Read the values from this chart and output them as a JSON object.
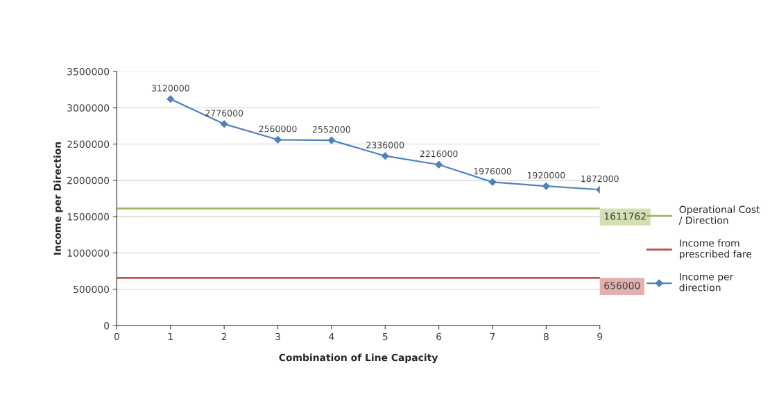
{
  "chart_data": {
    "type": "line",
    "xlabel": "Combination of Line Capacity",
    "ylabel": "Income per Direction",
    "xlim": [
      0,
      9
    ],
    "xticks": [
      0,
      1,
      2,
      3,
      4,
      5,
      6,
      7,
      8,
      9
    ],
    "ylim": [
      0,
      3500000
    ],
    "yticks": [
      0,
      500000,
      1000000,
      1500000,
      2000000,
      2500000,
      3000000,
      3500000
    ],
    "grid": "y",
    "legend": "right",
    "series": [
      {
        "name": "Operational Cost / Direction",
        "color": "#9bbb59",
        "x": [
          0,
          9
        ],
        "values": [
          1611762,
          1611762
        ],
        "marker": "none",
        "value_labels": [
          null,
          "1611762"
        ]
      },
      {
        "name": "Income from prescribed fare",
        "color": "#c0504d",
        "x": [
          0,
          9
        ],
        "values": [
          656000,
          656000
        ],
        "marker": "none",
        "value_labels": [
          null,
          "656000"
        ]
      },
      {
        "name": "Income per direction",
        "color": "#4f81bd",
        "x": [
          1,
          2,
          3,
          4,
          5,
          6,
          7,
          8,
          9
        ],
        "values": [
          3120000,
          2776000,
          2560000,
          2552000,
          2336000,
          2216000,
          1976000,
          1920000,
          1872000
        ],
        "marker": "diamond",
        "data_labels": true
      }
    ]
  }
}
